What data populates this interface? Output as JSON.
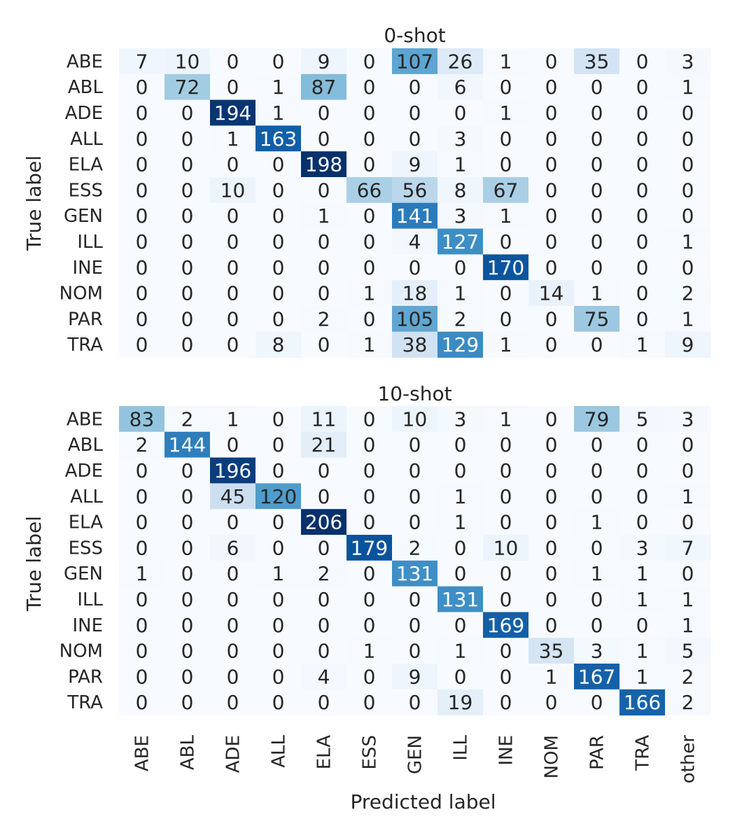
{
  "chart_data": [
    {
      "type": "heatmap",
      "title": "0-shot",
      "ylabel": "True label",
      "xlabel": "",
      "colormap": "Blues",
      "row_labels": [
        "ABE",
        "ABL",
        "ADE",
        "ALL",
        "ELA",
        "ESS",
        "GEN",
        "ILL",
        "INE",
        "NOM",
        "PAR",
        "TRA"
      ],
      "col_labels": [
        "ABE",
        "ABL",
        "ADE",
        "ALL",
        "ELA",
        "ESS",
        "GEN",
        "ILL",
        "INE",
        "NOM",
        "PAR",
        "TRA",
        "other"
      ],
      "show_x_ticks": false,
      "values": [
        [
          7,
          10,
          0,
          0,
          9,
          0,
          107,
          26,
          1,
          0,
          35,
          0,
          3
        ],
        [
          0,
          72,
          0,
          1,
          87,
          0,
          0,
          6,
          0,
          0,
          0,
          0,
          1
        ],
        [
          0,
          0,
          194,
          1,
          0,
          0,
          0,
          0,
          1,
          0,
          0,
          0,
          0
        ],
        [
          0,
          0,
          1,
          163,
          0,
          0,
          0,
          3,
          0,
          0,
          0,
          0,
          0
        ],
        [
          0,
          0,
          0,
          0,
          198,
          0,
          9,
          1,
          0,
          0,
          0,
          0,
          0
        ],
        [
          0,
          0,
          10,
          0,
          0,
          66,
          56,
          8,
          67,
          0,
          0,
          0,
          0
        ],
        [
          0,
          0,
          0,
          0,
          1,
          0,
          141,
          3,
          1,
          0,
          0,
          0,
          0
        ],
        [
          0,
          0,
          0,
          0,
          0,
          0,
          4,
          127,
          0,
          0,
          0,
          0,
          1
        ],
        [
          0,
          0,
          0,
          0,
          0,
          0,
          0,
          0,
          170,
          0,
          0,
          0,
          0
        ],
        [
          0,
          0,
          0,
          0,
          0,
          1,
          18,
          1,
          0,
          14,
          1,
          0,
          2
        ],
        [
          0,
          0,
          0,
          0,
          2,
          0,
          105,
          2,
          0,
          0,
          75,
          0,
          1
        ],
        [
          0,
          0,
          0,
          8,
          0,
          1,
          38,
          129,
          1,
          0,
          0,
          1,
          9
        ]
      ]
    },
    {
      "type": "heatmap",
      "title": "10-shot",
      "ylabel": "True label",
      "xlabel": "Predicted label",
      "colormap": "Blues",
      "row_labels": [
        "ABE",
        "ABL",
        "ADE",
        "ALL",
        "ELA",
        "ESS",
        "GEN",
        "ILL",
        "INE",
        "NOM",
        "PAR",
        "TRA"
      ],
      "col_labels": [
        "ABE",
        "ABL",
        "ADE",
        "ALL",
        "ELA",
        "ESS",
        "GEN",
        "ILL",
        "INE",
        "NOM",
        "PAR",
        "TRA",
        "other"
      ],
      "show_x_ticks": true,
      "values": [
        [
          83,
          2,
          1,
          0,
          11,
          0,
          10,
          3,
          1,
          0,
          79,
          5,
          3
        ],
        [
          2,
          144,
          0,
          0,
          21,
          0,
          0,
          0,
          0,
          0,
          0,
          0,
          0
        ],
        [
          0,
          0,
          196,
          0,
          0,
          0,
          0,
          0,
          0,
          0,
          0,
          0,
          0
        ],
        [
          0,
          0,
          45,
          120,
          0,
          0,
          0,
          1,
          0,
          0,
          0,
          0,
          1
        ],
        [
          0,
          0,
          0,
          0,
          206,
          0,
          0,
          1,
          0,
          0,
          1,
          0,
          0
        ],
        [
          0,
          0,
          6,
          0,
          0,
          179,
          2,
          0,
          10,
          0,
          0,
          3,
          7
        ],
        [
          1,
          0,
          0,
          1,
          2,
          0,
          131,
          0,
          0,
          0,
          1,
          1,
          0
        ],
        [
          0,
          0,
          0,
          0,
          0,
          0,
          0,
          131,
          0,
          0,
          0,
          1,
          1
        ],
        [
          0,
          0,
          0,
          0,
          0,
          0,
          0,
          0,
          169,
          0,
          0,
          0,
          1
        ],
        [
          0,
          0,
          0,
          0,
          0,
          1,
          0,
          1,
          0,
          35,
          3,
          1,
          5
        ],
        [
          0,
          0,
          0,
          0,
          4,
          0,
          9,
          0,
          0,
          1,
          167,
          1,
          2
        ],
        [
          0,
          0,
          0,
          0,
          0,
          0,
          0,
          19,
          0,
          0,
          0,
          166,
          2
        ]
      ]
    }
  ]
}
